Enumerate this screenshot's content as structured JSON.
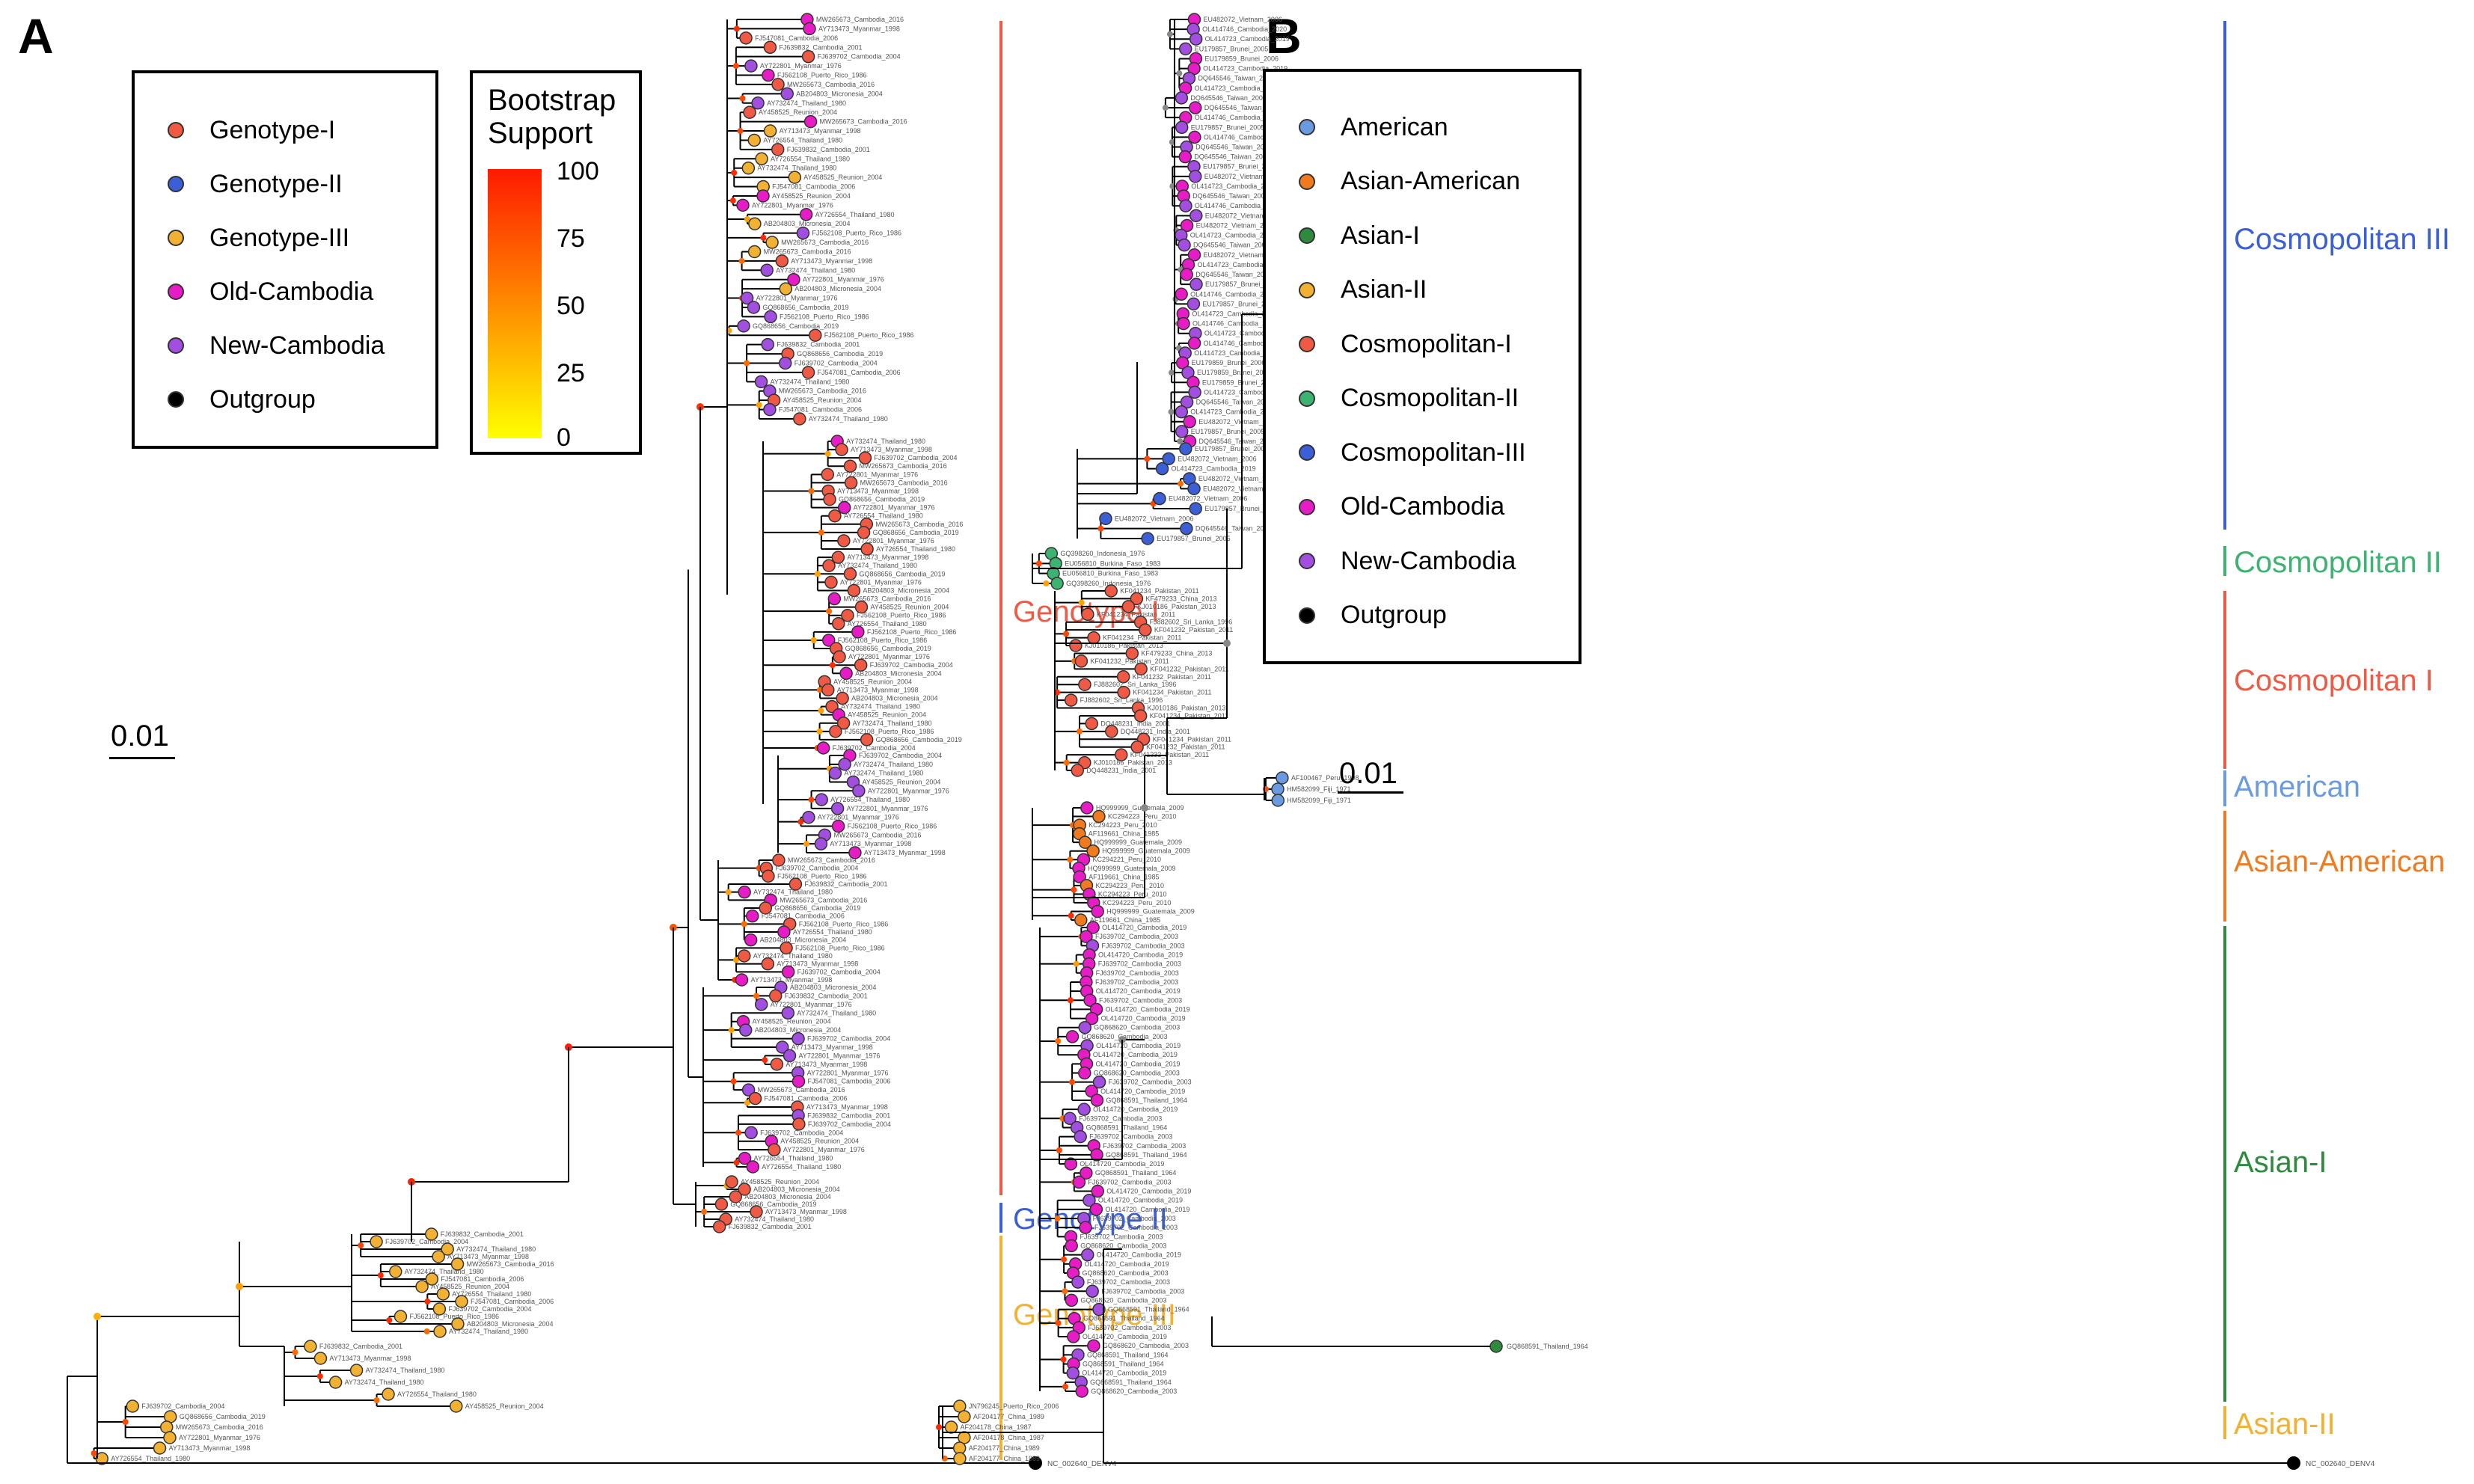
{
  "panel_a": {
    "label": "A",
    "legend": {
      "items": [
        {
          "name": "Genotype-I",
          "color": "#f05a45"
        },
        {
          "name": "Genotype-II",
          "color": "#3b5fd6"
        },
        {
          "name": "Genotype-III",
          "color": "#f2b132"
        },
        {
          "name": "Old-Cambodia",
          "color": "#e81cc6"
        },
        {
          "name": "New-Cambodia",
          "color": "#a24ee0"
        },
        {
          "name": "Outgroup",
          "color": "#000000"
        }
      ]
    },
    "bootstrap": {
      "title_line1": "Bootstrap",
      "title_line2": "Support",
      "ticks": [
        "100",
        "75",
        "50",
        "25",
        "0"
      ]
    },
    "scale": "0.01",
    "clades": [
      {
        "name": "Genotype I",
        "color": "#f05a45"
      },
      {
        "name": "Genotype II",
        "color": "#3b5fd6"
      },
      {
        "name": "Genotype III",
        "color": "#f2b132"
      }
    ],
    "tips": {
      "outgroup": "NC_002640_DENV4",
      "sample": [
        "AY732474_Thailand_1980",
        "AY726554_Thailand_1980",
        "AY713473_Myanmar_1998",
        "AY722801_Myanmar_1976",
        "FJ562108_Puerto_Rico_1986",
        "AY458525_Reunion_2004",
        "AB204803_Micronesia_2004",
        "FJ639832_Cambodia_2001",
        "MW265673_Cambodia_2016",
        "FJ547081_Cambodia_2006",
        "GQ868656_Cambodia_2019",
        "FJ639702_Cambodia_2004"
      ]
    }
  },
  "panel_b": {
    "label": "B",
    "legend": {
      "items": [
        {
          "name": "American",
          "color": "#6a9be0"
        },
        {
          "name": "Asian-American",
          "color": "#ef7a1f"
        },
        {
          "name": "Asian-I",
          "color": "#2e8b3e"
        },
        {
          "name": "Asian-II",
          "color": "#f2b132"
        },
        {
          "name": "Cosmopolitan-I",
          "color": "#f05a45"
        },
        {
          "name": "Cosmopolitan-II",
          "color": "#3cb371"
        },
        {
          "name": "Cosmopolitan-III",
          "color": "#3b5fd6"
        },
        {
          "name": "Old-Cambodia",
          "color": "#e81cc6"
        },
        {
          "name": "New-Cambodia",
          "color": "#a24ee0"
        },
        {
          "name": "Outgroup",
          "color": "#000000"
        }
      ]
    },
    "scale": "0.01",
    "clades": [
      {
        "name": "Cosmopolitan III",
        "color": "#3b5fd6"
      },
      {
        "name": "Cosmopolitan II",
        "color": "#3cb371"
      },
      {
        "name": "Cosmopolitan I",
        "color": "#f05a45"
      },
      {
        "name": "American",
        "color": "#6a9be0"
      },
      {
        "name": "Asian-American",
        "color": "#ef7a1f"
      },
      {
        "name": "Asian-I",
        "color": "#2e8b3e"
      },
      {
        "name": "Asian-II",
        "color": "#f2b132"
      }
    ],
    "tips": {
      "outgroup": "NC_002640_DENV4",
      "american": [
        "GQ868592_Columbia_1986",
        "AF100467_Peru_1998",
        "HM582099_Fiji_1971"
      ],
      "asian_american": [
        "KC294223_Peru_2010",
        "KC294221_Peru_2010",
        "HQ999999_Guatemala_2009",
        "AF119661_China_1985"
      ],
      "cosmo_ii": [
        "GQ398259_Indonesia_1976",
        "EU056810_Burkina_Faso_1983",
        "GQ398260_Indonesia_1976"
      ],
      "cosmo_i": [
        "KF041234_Pakistan_2011",
        "KF041232_Pakistan_2011",
        "KJ010186_Pakistan_2013",
        "DQ448231_India_2001",
        "KF479233_China_2013",
        "FJ882602_Sri_Lanka_1996"
      ],
      "cosmo_iii": [
        "EU179857_Brunei_2005",
        "EU179859_Brunei_2006",
        "EU482072_Vietnam_2006",
        "DQ645546_Taiwan_2002",
        "OL414723_Cambodia_2019",
        "OL414746_Cambodia_2020"
      ],
      "asian_i": [
        "FJ639702_Cambodia_2003",
        "GQ868591_Thailand_1964",
        "OL414720_Cambodia_2019",
        "GQ868620_Cambodia_2003"
      ],
      "asian_ii": [
        "GQ398268_Indonesia_1975",
        "JN796245_Puerto_Rico_2006",
        "AF204177_China_1989",
        "AF204178_China_1987"
      ]
    }
  }
}
